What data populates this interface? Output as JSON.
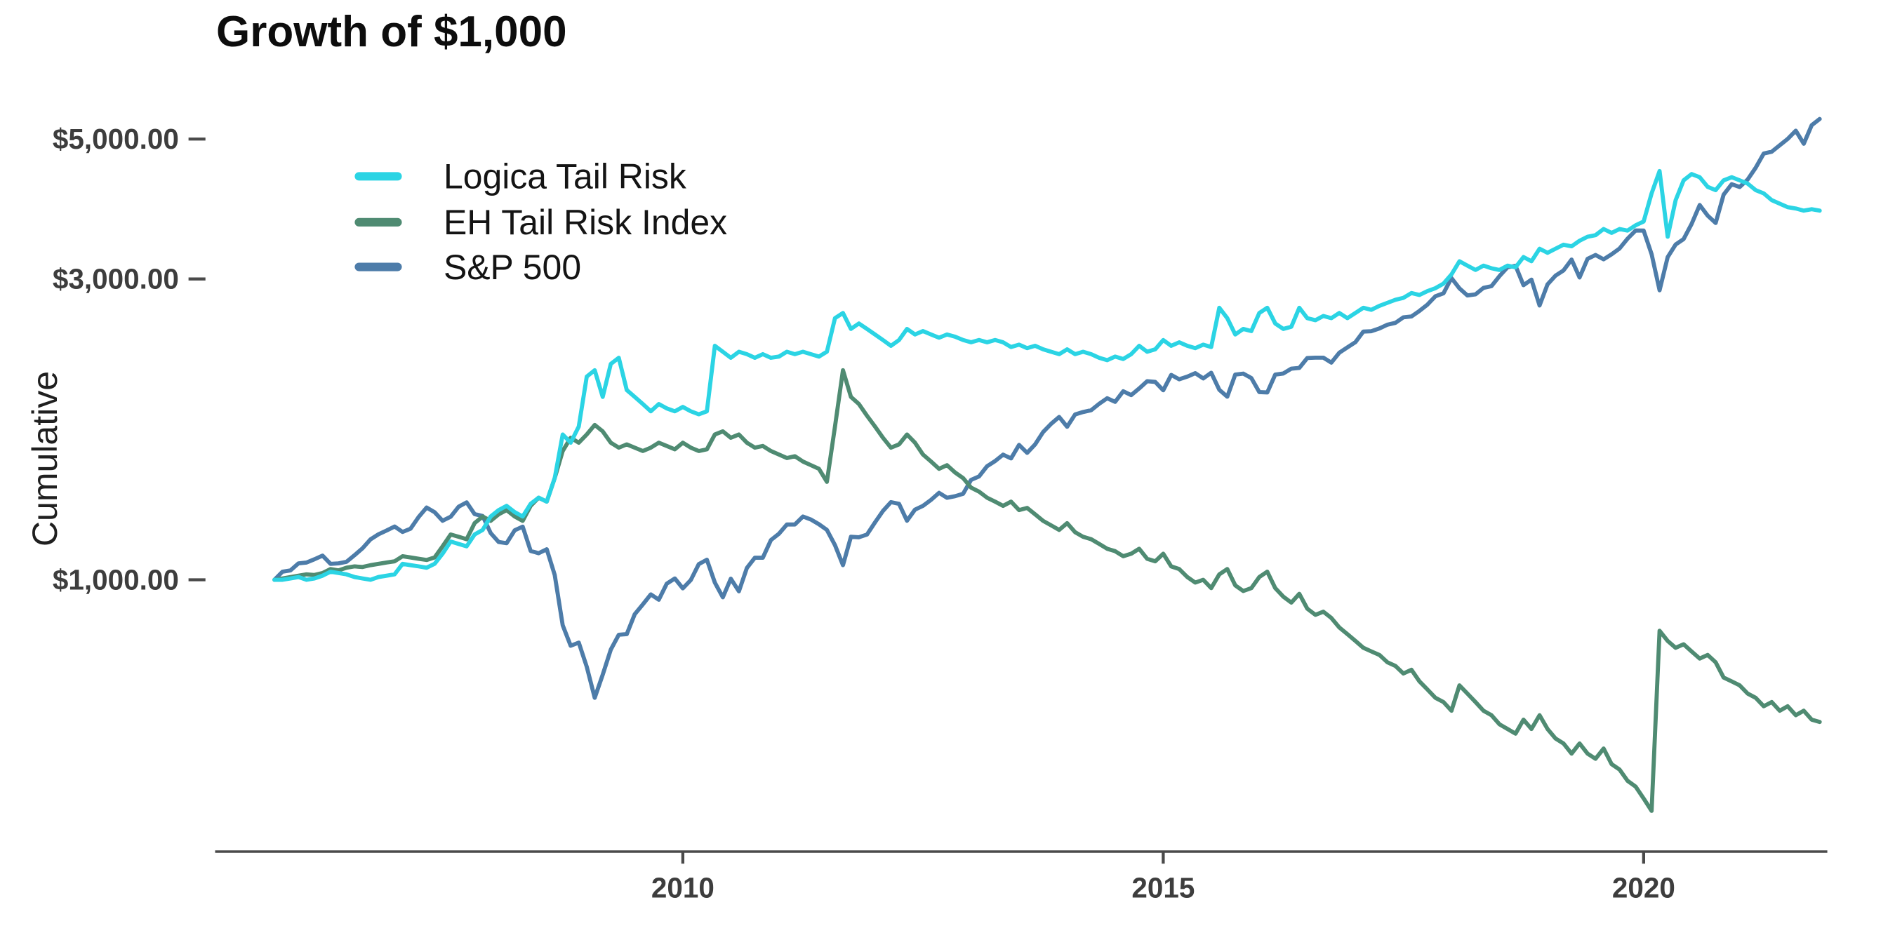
{
  "page": {
    "background": "#ffffff"
  },
  "chart": {
    "title": "Growth of $1,000",
    "ylabel": "Cumulative"
  },
  "chart_data": {
    "type": "line",
    "title": "Growth of $1,000",
    "xlabel": "",
    "ylabel": "Cumulative",
    "y_scale": "log",
    "ylim": [
      400,
      5800
    ],
    "grid": false,
    "legend_position": "upper-left-inside",
    "axis_color": "#4a4a4a",
    "tick_label_color": "#3d3d3d",
    "legend_text_color": "#141414",
    "x_start": 2005.75,
    "x_step_years": 0.0833333,
    "x_ticks": [
      {
        "value": 2010,
        "label": "2010"
      },
      {
        "value": 2015,
        "label": "2015"
      },
      {
        "value": 2020,
        "label": "2020"
      }
    ],
    "y_ticks": [
      {
        "value": 1000,
        "label": "$1,000.00"
      },
      {
        "value": 3000,
        "label": "$3,000.00"
      },
      {
        "value": 5000,
        "label": "$5,000.00"
      }
    ],
    "series": [
      {
        "id": "logica-tail-risk",
        "name": "Logica Tail Risk",
        "color": "#2bd4e4",
        "values": [
          1000,
          1000,
          1005,
          1010,
          1000,
          1005,
          1015,
          1030,
          1025,
          1020,
          1010,
          1005,
          1000,
          1010,
          1015,
          1020,
          1060,
          1055,
          1050,
          1045,
          1060,
          1100,
          1150,
          1140,
          1130,
          1180,
          1200,
          1260,
          1290,
          1310,
          1280,
          1260,
          1320,
          1350,
          1330,
          1450,
          1700,
          1650,
          1750,
          2100,
          2150,
          1950,
          2200,
          2250,
          2000,
          1950,
          1900,
          1850,
          1900,
          1870,
          1850,
          1880,
          1850,
          1830,
          1850,
          2350,
          2300,
          2250,
          2300,
          2280,
          2250,
          2280,
          2250,
          2260,
          2300,
          2280,
          2300,
          2280,
          2260,
          2300,
          2600,
          2650,
          2500,
          2550,
          2500,
          2450,
          2400,
          2350,
          2400,
          2500,
          2450,
          2480,
          2450,
          2420,
          2450,
          2430,
          2400,
          2380,
          2400,
          2380,
          2400,
          2380,
          2340,
          2360,
          2330,
          2350,
          2320,
          2300,
          2280,
          2320,
          2280,
          2300,
          2280,
          2250,
          2230,
          2260,
          2240,
          2280,
          2350,
          2300,
          2320,
          2400,
          2350,
          2380,
          2350,
          2330,
          2360,
          2340,
          2700,
          2600,
          2450,
          2500,
          2480,
          2650,
          2700,
          2550,
          2500,
          2520,
          2700,
          2600,
          2580,
          2620,
          2600,
          2650,
          2600,
          2650,
          2700,
          2680,
          2720,
          2750,
          2780,
          2800,
          2850,
          2830,
          2870,
          2900,
          2950,
          3050,
          3200,
          3150,
          3100,
          3150,
          3120,
          3100,
          3150,
          3130,
          3250,
          3200,
          3350,
          3300,
          3350,
          3400,
          3380,
          3450,
          3500,
          3520,
          3600,
          3550,
          3600,
          3580,
          3650,
          3700,
          4100,
          4450,
          3500,
          4000,
          4300,
          4400,
          4350,
          4200,
          4150,
          4300,
          4350,
          4300,
          4250,
          4150,
          4100,
          4000,
          3950,
          3900,
          3880,
          3850,
          3870,
          3850
        ]
      },
      {
        "id": "eh-tail-risk-index",
        "name": "EH Tail Risk Index",
        "color": "#4f8b72",
        "values": [
          1000,
          1005,
          1010,
          1015,
          1020,
          1018,
          1025,
          1040,
          1035,
          1045,
          1050,
          1048,
          1055,
          1060,
          1065,
          1070,
          1090,
          1085,
          1080,
          1075,
          1085,
          1130,
          1180,
          1170,
          1160,
          1230,
          1260,
          1240,
          1270,
          1290,
          1260,
          1240,
          1310,
          1350,
          1330,
          1450,
          1600,
          1680,
          1650,
          1700,
          1760,
          1720,
          1650,
          1620,
          1640,
          1620,
          1600,
          1620,
          1650,
          1630,
          1610,
          1650,
          1620,
          1600,
          1610,
          1700,
          1720,
          1680,
          1700,
          1650,
          1620,
          1630,
          1600,
          1580,
          1560,
          1570,
          1540,
          1520,
          1500,
          1430,
          1750,
          2150,
          1950,
          1900,
          1820,
          1750,
          1680,
          1620,
          1640,
          1700,
          1650,
          1580,
          1540,
          1500,
          1520,
          1480,
          1450,
          1400,
          1380,
          1350,
          1330,
          1310,
          1330,
          1290,
          1300,
          1270,
          1240,
          1220,
          1200,
          1230,
          1190,
          1170,
          1160,
          1140,
          1120,
          1110,
          1090,
          1100,
          1120,
          1080,
          1070,
          1100,
          1050,
          1040,
          1010,
          990,
          1000,
          970,
          1020,
          1040,
          980,
          960,
          970,
          1010,
          1030,
          970,
          940,
          920,
          950,
          900,
          880,
          890,
          870,
          840,
          820,
          800,
          780,
          770,
          760,
          740,
          730,
          710,
          720,
          690,
          670,
          650,
          640,
          620,
          680,
          660,
          640,
          620,
          610,
          590,
          580,
          570,
          600,
          580,
          610,
          580,
          560,
          550,
          530,
          550,
          530,
          520,
          540,
          510,
          500,
          480,
          470,
          450,
          430,
          830,
          800,
          780,
          790,
          770,
          750,
          760,
          740,
          700,
          690,
          680,
          660,
          650,
          630,
          640,
          620,
          630,
          610,
          620,
          600,
          595
        ]
      },
      {
        "id": "sp-500",
        "name": "S&P 500",
        "color": "#4d7ca9",
        "values": [
          1000,
          1030,
          1035,
          1062,
          1065,
          1078,
          1092,
          1060,
          1062,
          1068,
          1094,
          1122,
          1159,
          1181,
          1197,
          1215,
          1191,
          1205,
          1258,
          1302,
          1280,
          1241,
          1259,
          1306,
          1327,
          1271,
          1262,
          1186,
          1148,
          1143,
          1198,
          1214,
          1111,
          1102,
          1118,
          1018,
          847,
          786,
          795,
          728,
          650,
          707,
          775,
          818,
          820,
          882,
          914,
          948,
          930,
          986,
          1005,
          969,
          999,
          1059,
          1076,
          990,
          938,
          1004,
          959,
          1044,
          1084,
          1084,
          1156,
          1183,
          1224,
          1224,
          1260,
          1246,
          1225,
          1200,
          1135,
          1055,
          1170,
          1168,
          1180,
          1233,
          1286,
          1328,
          1320,
          1241,
          1292,
          1310,
          1339,
          1374,
          1349,
          1357,
          1369,
          1440,
          1459,
          1514,
          1543,
          1579,
          1558,
          1637,
          1590,
          1640,
          1715,
          1767,
          1812,
          1749,
          1829,
          1845,
          1858,
          1902,
          1941,
          1915,
          1991,
          1963,
          2011,
          2065,
          2060,
          1998,
          2113,
          2080,
          2100,
          2127,
          2086,
          2130,
          2001,
          1952,
          2116,
          2123,
          2089,
          1985,
          1982,
          2116,
          2124,
          2162,
          2168,
          2248,
          2251,
          2251,
          2210,
          2292,
          2337,
          2381,
          2476,
          2479,
          2504,
          2539,
          2555,
          2608,
          2616,
          2670,
          2732,
          2816,
          2847,
          3010,
          2899,
          2825,
          2836,
          2904,
          2922,
          3031,
          3130,
          3148,
          2933,
          2993,
          2723,
          2941,
          3036,
          3095,
          3220,
          3016,
          3228,
          3275,
          3223,
          3283,
          3354,
          3476,
          3581,
          3580,
          3285,
          2879,
          3248,
          3403,
          3471,
          3667,
          3930,
          3781,
          3680,
          4083,
          4240,
          4197,
          4313,
          4502,
          4742,
          4775,
          4887,
          5003,
          5155,
          4915,
          5260,
          5380
        ]
      }
    ]
  }
}
